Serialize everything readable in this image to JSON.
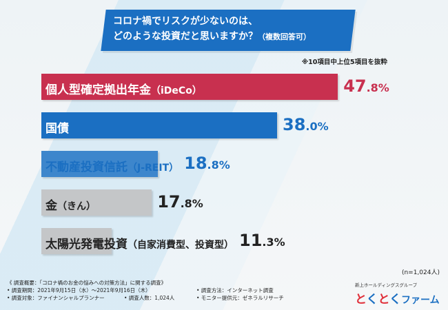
{
  "title": {
    "line1": "コロナ禍でリスクが少ないのは、",
    "line2": "どのような投資だと思いますか？",
    "line2_suffix": "（複数回答可）"
  },
  "note_top": "※10項目中上位5項目を抜粋",
  "sample_note": "(n=1,024人)",
  "chart_data": {
    "type": "bar",
    "orientation": "horizontal",
    "title": "コロナ禍でリスクが少ないのは、どのような投資だと思いますか？（複数回答可）",
    "categories": [
      "個人型確定拠出年金（iDeCo）",
      "国債",
      "不動産投資信託（J-REIT）",
      "金（きん）",
      "太陽光発電投資（自家消費型、投資型）"
    ],
    "values": [
      47.8,
      38.0,
      18.8,
      17.8,
      11.3
    ],
    "unit": "%",
    "xlim": [
      0,
      50
    ],
    "bars": [
      {
        "main": "個人型確定拠出年金",
        "paren": "（iDeCo）",
        "value_int": "47",
        "value_dec": ".8%",
        "color": "#c8304f",
        "label_color": "#ffffff",
        "value_color": "#c8304f"
      },
      {
        "main": "国債",
        "paren": "",
        "value_int": "38",
        "value_dec": ".0%",
        "color": "#1b6fc2",
        "label_color": "#ffffff",
        "value_color": "#1b6fc2"
      },
      {
        "main": "不動産投資信託",
        "paren": "（J-REIT）",
        "value_int": "18",
        "value_dec": ".8%",
        "color": "#3d86cc",
        "label_color": "#1b6fc2",
        "value_color": "#1b6fc2"
      },
      {
        "main": "金",
        "paren": "（きん）",
        "value_int": "17",
        "value_dec": ".8%",
        "color": "#c4c6c8",
        "label_color": "#222222",
        "value_color": "#222222"
      },
      {
        "main": "太陽光発電投資",
        "paren": "（自家消費型、投資型）",
        "value_int": "11",
        "value_dec": ".3%",
        "color": "#c4c6c8",
        "label_color": "#222222",
        "value_color": "#222222"
      }
    ]
  },
  "footer": {
    "heading": "《 調査概要：「コロナ禍のお金の悩みへの対策方法」に関する調査》",
    "period": "• 調査期間：2021年9月15日（水）～2021年9月16日（木）",
    "method": "• 調査方法：インターネット調査",
    "target": "• 調査対象：ファイナンシャルプランナー",
    "count": "• 調査人数：1,024人",
    "monitor": "• モニター提供元：ゼネラルリサーチ"
  },
  "logo": {
    "sub": "新上ホールディングスグループ",
    "t1": "と",
    "t2": "く",
    "t3": "と",
    "t4": "く",
    "farm": "ファーム"
  }
}
